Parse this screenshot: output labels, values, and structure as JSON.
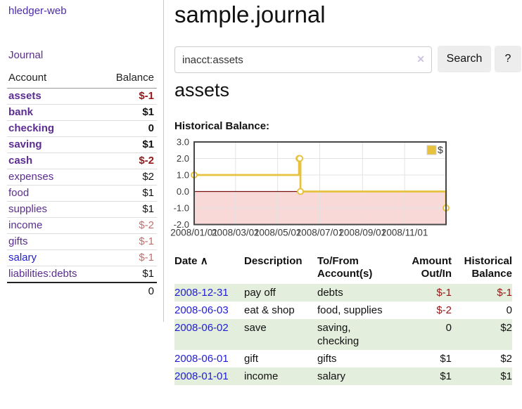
{
  "app": {
    "brand": "hledger-web",
    "nav": {
      "journal": "Journal"
    }
  },
  "sidebar": {
    "header": {
      "account": "Account",
      "balance": "Balance"
    },
    "accounts": [
      {
        "name": "assets",
        "depth": 1,
        "balance": "$-1",
        "bold": true,
        "neg": "strong",
        "link": "purple"
      },
      {
        "name": "bank",
        "depth": 2,
        "balance": "$1",
        "bold": true,
        "neg": "none",
        "link": "purple"
      },
      {
        "name": "checking",
        "depth": 3,
        "balance": "0",
        "bold": true,
        "neg": "none",
        "link": "purple"
      },
      {
        "name": "saving",
        "depth": 3,
        "balance": "$1",
        "bold": true,
        "neg": "none",
        "link": "purple"
      },
      {
        "name": "cash",
        "depth": 2,
        "balance": "$-2",
        "bold": true,
        "neg": "strong",
        "link": "purple"
      },
      {
        "name": "expenses",
        "depth": 1,
        "balance": "$2",
        "bold": false,
        "neg": "none",
        "link": "purple"
      },
      {
        "name": "food",
        "depth": 2,
        "balance": "$1",
        "bold": false,
        "neg": "none",
        "link": "purple"
      },
      {
        "name": "supplies",
        "depth": 2,
        "balance": "$1",
        "bold": false,
        "neg": "none",
        "link": "purple"
      },
      {
        "name": "income",
        "depth": 1,
        "balance": "$-2",
        "bold": false,
        "neg": "soft",
        "link": "purple"
      },
      {
        "name": "gifts",
        "depth": 2,
        "balance": "$-1",
        "bold": false,
        "neg": "soft",
        "link": "purple"
      },
      {
        "name": "salary",
        "depth": 2,
        "balance": "$-1",
        "bold": false,
        "neg": "soft",
        "link": "blue"
      },
      {
        "name": "liabilities:debts",
        "depth": 1,
        "balance": "$1",
        "bold": false,
        "neg": "none",
        "link": "purple"
      }
    ],
    "total": "0"
  },
  "main": {
    "title": "sample.journal",
    "search": {
      "value": "inacct:assets",
      "clear_icon": "✕",
      "button_label": "Search",
      "help_label": "?"
    },
    "account_heading": "assets"
  },
  "chart_data": {
    "type": "line",
    "style": "steps",
    "title": "Historical Balance:",
    "x_range": [
      "2008-01-01",
      "2008-12-31"
    ],
    "ylim": [
      -2,
      3
    ],
    "y_ticks": [
      "3.0",
      "2.0",
      "1.0",
      "0.0",
      "-1.0",
      "-2.0"
    ],
    "y_tick_values": [
      3,
      2,
      1,
      0,
      -1,
      -2
    ],
    "x_ticks": [
      {
        "date": "2008-01-01",
        "label": "2008/01/01"
      },
      {
        "date": "2008-03-01",
        "label": "2008/03/01"
      },
      {
        "date": "2008-05-01",
        "label": "2008/05/01"
      },
      {
        "date": "2008-07-01",
        "label": "2008/07/01"
      },
      {
        "date": "2008-09-01",
        "label": "2008/09/01"
      },
      {
        "date": "2008-11-01",
        "label": "2008/11/01"
      }
    ],
    "series": [
      {
        "name": "$",
        "color": "#e6c23f",
        "points": [
          {
            "date": "2008-01-01",
            "value": 1
          },
          {
            "date": "2008-06-01",
            "value": 2
          },
          {
            "date": "2008-06-02",
            "value": 2
          },
          {
            "date": "2008-06-03",
            "value": 0
          },
          {
            "date": "2008-12-31",
            "value": -1
          }
        ]
      }
    ],
    "negative_fill": "#f9d8d8",
    "zero_line_color": "#7a1212",
    "grid_color": "#e3e3e3",
    "border_color": "#474747",
    "legend": {
      "label": "$",
      "position": "top-right"
    }
  },
  "register": {
    "columns": {
      "date": "Date",
      "sort_icon": "∧",
      "description": "Description",
      "tofrom": "To/From Account(s)",
      "amount": "Amount Out/In",
      "balance": "Historical Balance"
    },
    "rows": [
      {
        "date": "2008-12-31",
        "description": "pay off",
        "accounts": "debts",
        "amount": "$-1",
        "amount_neg": true,
        "balance": "$-1",
        "balance_neg": true
      },
      {
        "date": "2008-06-03",
        "description": "eat & shop",
        "accounts": "food, supplies",
        "amount": "$-2",
        "amount_neg": true,
        "balance": "0",
        "balance_neg": false
      },
      {
        "date": "2008-06-02",
        "description": "save",
        "accounts": "saving, checking",
        "amount": "0",
        "amount_neg": false,
        "balance": "$2",
        "balance_neg": false
      },
      {
        "date": "2008-06-01",
        "description": "gift",
        "accounts": "gifts",
        "amount": "$1",
        "amount_neg": false,
        "balance": "$2",
        "balance_neg": false
      },
      {
        "date": "2008-01-01",
        "description": "income",
        "accounts": "salary",
        "amount": "$1",
        "amount_neg": false,
        "balance": "$1",
        "balance_neg": false
      }
    ]
  }
}
